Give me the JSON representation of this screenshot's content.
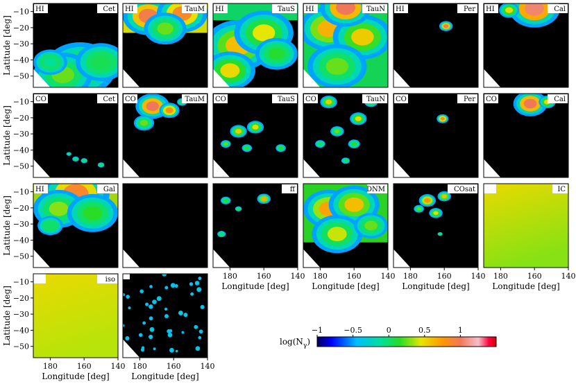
{
  "chart_data": {
    "type": "heatmap",
    "title": "",
    "xlabel": "Longitude [deg]",
    "ylabel": "Latitude [deg]",
    "xlim": [
      190,
      140
    ],
    "ylim": [
      -57,
      -5
    ],
    "x_ticks": [
      "180",
      "160",
      "140"
    ],
    "y_ticks": [
      "-10",
      "-20",
      "-30",
      "-40",
      "-50"
    ],
    "colorbar": {
      "label": "log(N",
      "label_sub": "γ",
      "label_close": ")",
      "range": [
        -1,
        1.5
      ],
      "ticks": [
        "-1",
        "-0.5",
        "0",
        "0.5",
        "1"
      ]
    },
    "panels": [
      {
        "left": "HI",
        "right": "Cet"
      },
      {
        "left": "HI",
        "right": "TauM"
      },
      {
        "left": "HI",
        "right": "TauS"
      },
      {
        "left": "HI",
        "right": "TauN"
      },
      {
        "left": "HI",
        "right": "Per"
      },
      {
        "left": "HI",
        "right": "Cal"
      },
      {
        "left": "CO",
        "right": "Cet"
      },
      {
        "left": "CO",
        "right": "TauM"
      },
      {
        "left": "CO",
        "right": "TauS"
      },
      {
        "left": "CO",
        "right": "TauN"
      },
      {
        "left": "CO",
        "right": "Per"
      },
      {
        "left": "CO",
        "right": "Cal"
      },
      {
        "left": "HI",
        "right": "Gal"
      },
      {
        "left": "",
        "right": ""
      },
      {
        "left": "",
        "right": "ff"
      },
      {
        "left": "",
        "right": "DNM"
      },
      {
        "left": "",
        "right": "COsat"
      },
      {
        "left": "",
        "right": "IC"
      },
      {
        "left": "",
        "right": "iso"
      },
      {
        "left": "",
        "right": ""
      }
    ]
  }
}
